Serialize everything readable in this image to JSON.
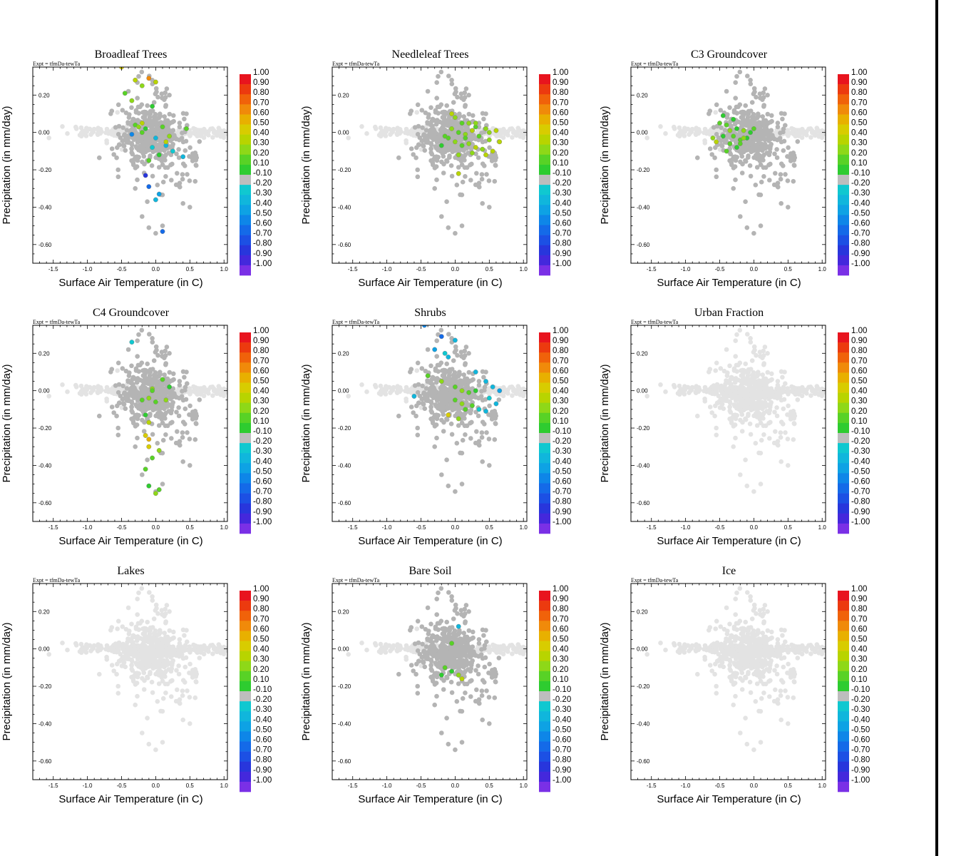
{
  "figure": {
    "expt_label": "Expt = tfmDa-tewTa",
    "colorbar_levels": [
      "1.00",
      "0.90",
      "0.80",
      "0.70",
      "0.60",
      "0.50",
      "0.40",
      "0.30",
      "0.20",
      "0.10",
      "-0.10",
      "-0.20",
      "-0.30",
      "-0.40",
      "-0.50",
      "-0.60",
      "-0.70",
      "-0.80",
      "-0.90",
      "-1.00"
    ],
    "colorbar_colors": [
      "#e8141e",
      "#ec3a0f",
      "#f0620a",
      "#f08a0a",
      "#e8b000",
      "#d8cc00",
      "#b8d400",
      "#8ed818",
      "#58d226",
      "#2ecc30",
      "#bdbdbd",
      "#10c8d0",
      "#10b6dc",
      "#0ea2e4",
      "#0e86e8",
      "#146ae8",
      "#1c50e4",
      "#2836dc",
      "#4428dc",
      "#7a30e6"
    ],
    "background_point_colors": {
      "light": "#e3e3e3",
      "medium": "#b4b4b4"
    }
  },
  "chart_data": [
    {
      "type": "scatter",
      "title": "Broadleaf Trees",
      "xlabel": "Surface Air Temperature (in C)",
      "ylabel": "Precipitation (in mm/day)",
      "xlim": [
        -1.8,
        1.05
      ],
      "ylim": [
        -0.7,
        0.35
      ],
      "xticks": [
        "-1.5",
        "-1.0",
        "-0.5",
        "0.0",
        "0.5",
        "1.0"
      ],
      "yticks": [
        "0.20",
        "0.00",
        "-0.20",
        "-0.40",
        "-0.60"
      ],
      "colored_points": [
        [
          -0.5,
          0.35,
          0.5
        ],
        [
          -0.3,
          0.28,
          0.4
        ],
        [
          -0.2,
          0.25,
          0.3
        ],
        [
          -0.1,
          0.29,
          0.7
        ],
        [
          0.0,
          0.27,
          0.4
        ],
        [
          -0.45,
          0.21,
          0.2
        ],
        [
          -0.35,
          0.17,
          0.3
        ],
        [
          -0.05,
          0.14,
          0.1
        ],
        [
          -0.3,
          0.04,
          0.2
        ],
        [
          -0.15,
          0.02,
          0.1
        ],
        [
          -0.25,
          0.03,
          0.3
        ],
        [
          -0.2,
          0.0,
          0.2
        ],
        [
          0.0,
          -0.03,
          -0.3
        ],
        [
          0.1,
          0.03,
          0.2
        ],
        [
          0.2,
          -0.02,
          0.3
        ],
        [
          0.45,
          0.02,
          0.2
        ],
        [
          -0.35,
          -0.01,
          -0.5
        ],
        [
          -0.05,
          -0.08,
          -0.2
        ],
        [
          0.15,
          -0.07,
          -0.3
        ],
        [
          0.25,
          -0.1,
          -0.2
        ],
        [
          0.4,
          -0.13,
          -0.3
        ],
        [
          -0.1,
          -0.15,
          0.2
        ],
        [
          0.05,
          -0.12,
          0.1
        ],
        [
          -0.15,
          -0.23,
          -0.8
        ],
        [
          -0.1,
          -0.29,
          -0.6
        ],
        [
          0.05,
          -0.33,
          -0.4
        ],
        [
          0.0,
          -0.36,
          -0.3
        ],
        [
          0.1,
          -0.53,
          -0.6
        ],
        [
          -0.2,
          0.05,
          0.4
        ],
        [
          0.15,
          -0.05,
          0.4
        ]
      ],
      "bg_mode": "mixed"
    },
    {
      "type": "scatter",
      "title": "Needleleaf Trees",
      "xlabel": "Surface Air Temperature (in C)",
      "ylabel": "Precipitation (in mm/day)",
      "xlim": [
        -1.8,
        1.05
      ],
      "ylim": [
        -0.7,
        0.35
      ],
      "xticks": [
        "-1.5",
        "-1.0",
        "-0.5",
        "0.0",
        "0.5",
        "1.0"
      ],
      "yticks": [
        "0.20",
        "0.00",
        "-0.20",
        "-0.40",
        "-0.60"
      ],
      "colored_points": [
        [
          0.0,
          0.08,
          0.3
        ],
        [
          0.1,
          0.05,
          0.2
        ],
        [
          0.2,
          0.05,
          0.3
        ],
        [
          0.3,
          0.03,
          0.2
        ],
        [
          0.45,
          0.02,
          0.3
        ],
        [
          0.6,
          0.01,
          0.4
        ],
        [
          -0.05,
          0.02,
          0.3
        ],
        [
          0.05,
          0.0,
          0.2
        ],
        [
          0.15,
          -0.01,
          0.3
        ],
        [
          0.25,
          0.01,
          0.4
        ],
        [
          0.35,
          -0.02,
          0.2
        ],
        [
          0.5,
          -0.04,
          0.3
        ],
        [
          0.65,
          -0.05,
          0.4
        ],
        [
          -0.1,
          -0.03,
          0.2
        ],
        [
          0.0,
          -0.05,
          0.3
        ],
        [
          0.1,
          -0.07,
          0.2
        ],
        [
          0.2,
          -0.06,
          0.3
        ],
        [
          0.3,
          -0.08,
          0.4
        ],
        [
          0.4,
          -0.09,
          0.3
        ],
        [
          0.55,
          -0.1,
          0.4
        ],
        [
          -0.2,
          -0.07,
          0.1
        ],
        [
          -0.15,
          -0.02,
          0.2
        ],
        [
          0.05,
          -0.12,
          0.3
        ],
        [
          0.25,
          -0.11,
          0.3
        ],
        [
          0.45,
          -0.12,
          0.4
        ],
        [
          0.05,
          -0.22,
          0.4
        ],
        [
          -0.05,
          0.1,
          0.4
        ],
        [
          0.3,
          0.05,
          0.3
        ],
        [
          0.15,
          -0.03,
          0.2
        ],
        [
          0.5,
          0.0,
          0.3
        ]
      ],
      "bg_mode": "mixed"
    },
    {
      "type": "scatter",
      "title": "C3 Groundcover",
      "xlabel": "Surface Air Temperature (in C)",
      "ylabel": "Precipitation (in mm/day)",
      "xlim": [
        -1.8,
        1.05
      ],
      "ylim": [
        -0.7,
        0.35
      ],
      "xticks": [
        "-1.5",
        "-1.0",
        "-0.5",
        "0.0",
        "0.5",
        "1.0"
      ],
      "yticks": [
        "0.20",
        "0.00",
        "-0.20",
        "-0.40",
        "-0.60"
      ],
      "colored_points": [
        [
          -0.6,
          -0.03,
          0.3
        ],
        [
          -0.5,
          0.05,
          0.2
        ],
        [
          -0.45,
          0.09,
          0.1
        ],
        [
          -0.4,
          0.04,
          0.2
        ],
        [
          -0.35,
          0.01,
          0.3
        ],
        [
          -0.3,
          -0.02,
          0.2
        ],
        [
          -0.25,
          0.02,
          0.1
        ],
        [
          -0.2,
          -0.04,
          0.2
        ],
        [
          -0.15,
          0.01,
          0.3
        ],
        [
          -0.1,
          -0.03,
          0.1
        ],
        [
          0.0,
          0.02,
          0.2
        ],
        [
          -0.55,
          -0.05,
          0.4
        ],
        [
          -0.45,
          -0.02,
          0.1
        ],
        [
          -0.35,
          -0.06,
          0.2
        ],
        [
          -0.25,
          -0.08,
          0.1
        ],
        [
          -0.4,
          -0.1,
          0.2
        ],
        [
          -0.3,
          0.07,
          0.1
        ],
        [
          -0.2,
          -0.06,
          0.2
        ],
        [
          -0.15,
          -0.03,
          0.3
        ],
        [
          -0.05,
          0.0,
          0.1
        ]
      ],
      "bg_mode": "mixed"
    },
    {
      "type": "scatter",
      "title": "C4 Groundcover",
      "xlabel": "Surface Air Temperature (in C)",
      "ylabel": "Precipitation (in mm/day)",
      "xlim": [
        -1.8,
        1.05
      ],
      "ylim": [
        -0.7,
        0.35
      ],
      "xticks": [
        "-1.5",
        "-1.0",
        "-0.5",
        "0.0",
        "0.5",
        "1.0"
      ],
      "yticks": [
        "0.20",
        "0.00",
        "-0.20",
        "-0.40",
        "-0.60"
      ],
      "colored_points": [
        [
          -0.35,
          0.26,
          -0.2
        ],
        [
          0.1,
          0.06,
          0.2
        ],
        [
          0.2,
          0.02,
          0.1
        ],
        [
          -0.05,
          0.01,
          0.3
        ],
        [
          -0.2,
          -0.05,
          0.2
        ],
        [
          -0.1,
          -0.04,
          0.3
        ],
        [
          0.0,
          -0.06,
          0.2
        ],
        [
          0.15,
          -0.05,
          0.3
        ],
        [
          -0.15,
          -0.13,
          0.1
        ],
        [
          -0.1,
          -0.17,
          0.4
        ],
        [
          -0.15,
          -0.24,
          0.5
        ],
        [
          -0.1,
          -0.26,
          0.6
        ],
        [
          -0.1,
          -0.3,
          0.5
        ],
        [
          0.05,
          -0.32,
          0.3
        ],
        [
          -0.05,
          -0.36,
          0.2
        ],
        [
          -0.15,
          -0.42,
          0.2
        ],
        [
          -0.1,
          -0.51,
          0.1
        ],
        [
          0.05,
          -0.53,
          0.2
        ],
        [
          0.0,
          -0.55,
          0.3
        ],
        [
          -0.05,
          0.0,
          0.2
        ]
      ],
      "bg_mode": "mixed"
    },
    {
      "type": "scatter",
      "title": "Shrubs",
      "xlabel": "Surface Air Temperature (in C)",
      "ylabel": "Precipitation (in mm/day)",
      "xlim": [
        -1.8,
        1.05
      ],
      "ylim": [
        -0.7,
        0.35
      ],
      "xticks": [
        "-1.5",
        "-1.0",
        "-0.5",
        "0.0",
        "0.5",
        "1.0"
      ],
      "yticks": [
        "0.20",
        "0.00",
        "-0.20",
        "-0.40",
        "-0.60"
      ],
      "colored_points": [
        [
          -0.45,
          0.35,
          -0.5
        ],
        [
          -0.2,
          0.29,
          -0.6
        ],
        [
          0.0,
          0.27,
          -0.3
        ],
        [
          -0.3,
          0.22,
          -0.4
        ],
        [
          -0.15,
          0.2,
          -0.2
        ],
        [
          -0.1,
          0.18,
          -0.3
        ],
        [
          0.3,
          0.1,
          -0.3
        ],
        [
          0.45,
          0.05,
          -0.3
        ],
        [
          0.55,
          0.02,
          -0.3
        ],
        [
          0.65,
          0.0,
          -0.4
        ],
        [
          0.5,
          -0.04,
          -0.2
        ],
        [
          0.6,
          -0.07,
          -0.3
        ],
        [
          0.45,
          -0.11,
          -0.3
        ],
        [
          0.35,
          -0.1,
          -0.2
        ],
        [
          -0.6,
          -0.03,
          -0.3
        ],
        [
          0.0,
          0.02,
          0.2
        ],
        [
          0.1,
          0.0,
          0.3
        ],
        [
          0.2,
          -0.01,
          0.2
        ],
        [
          0.3,
          0.0,
          0.1
        ],
        [
          0.0,
          -0.05,
          0.2
        ],
        [
          0.1,
          -0.07,
          0.3
        ],
        [
          0.25,
          -0.08,
          0.2
        ],
        [
          -0.4,
          0.08,
          0.2
        ],
        [
          -0.2,
          0.05,
          0.3
        ],
        [
          -0.1,
          -0.13,
          0.5
        ],
        [
          0.05,
          -0.15,
          0.3
        ],
        [
          0.15,
          -0.1,
          0.2
        ]
      ],
      "bg_mode": "mixed"
    },
    {
      "type": "scatter",
      "title": "Urban Fraction",
      "xlabel": "Surface Air Temperature (in C)",
      "ylabel": "Precipitation (in mm/day)",
      "xlim": [
        -1.8,
        1.05
      ],
      "ylim": [
        -0.7,
        0.35
      ],
      "xticks": [
        "-1.5",
        "-1.0",
        "-0.5",
        "0.0",
        "0.5",
        "1.0"
      ],
      "yticks": [
        "0.20",
        "0.00",
        "-0.20",
        "-0.40",
        "-0.60"
      ],
      "colored_points": [],
      "bg_mode": "light"
    },
    {
      "type": "scatter",
      "title": "Lakes",
      "xlabel": "Surface Air Temperature (in C)",
      "ylabel": "Precipitation (in mm/day)",
      "xlim": [
        -1.8,
        1.05
      ],
      "ylim": [
        -0.7,
        0.35
      ],
      "xticks": [
        "-1.5",
        "-1.0",
        "-0.5",
        "0.0",
        "0.5",
        "1.0"
      ],
      "yticks": [
        "0.20",
        "0.00",
        "-0.20",
        "-0.40",
        "-0.60"
      ],
      "colored_points": [],
      "bg_mode": "light"
    },
    {
      "type": "scatter",
      "title": "Bare Soil",
      "xlabel": "Surface Air Temperature (in C)",
      "ylabel": "Precipitation (in mm/day)",
      "xlim": [
        -1.8,
        1.05
      ],
      "ylim": [
        -0.7,
        0.35
      ],
      "xticks": [
        "-1.5",
        "-1.0",
        "-0.5",
        "0.0",
        "0.5",
        "1.0"
      ],
      "yticks": [
        "0.20",
        "0.00",
        "-0.20",
        "-0.40",
        "-0.60"
      ],
      "colored_points": [
        [
          0.05,
          0.12,
          -0.3
        ],
        [
          -0.15,
          -0.1,
          0.2
        ],
        [
          -0.05,
          -0.12,
          0.1
        ],
        [
          0.1,
          -0.16,
          0.4
        ],
        [
          0.05,
          -0.14,
          0.3
        ],
        [
          -0.2,
          -0.14,
          0.1
        ],
        [
          -0.05,
          0.03,
          0.2
        ]
      ],
      "bg_mode": "mixed"
    },
    {
      "type": "scatter",
      "title": "Ice",
      "xlabel": "Surface Air Temperature (in C)",
      "ylabel": "Precipitation (in mm/day)",
      "xlim": [
        -1.8,
        1.05
      ],
      "ylim": [
        -0.7,
        0.35
      ],
      "xticks": [
        "-1.5",
        "-1.0",
        "-0.5",
        "0.0",
        "0.5",
        "1.0"
      ],
      "yticks": [
        "0.20",
        "0.00",
        "-0.20",
        "-0.40",
        "-0.60"
      ],
      "colored_points": [],
      "bg_mode": "light"
    }
  ]
}
